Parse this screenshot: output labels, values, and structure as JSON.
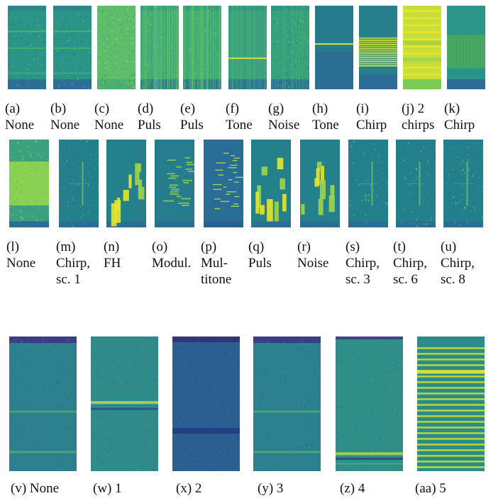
{
  "panels": [
    {
      "id": "a",
      "caption": "(a)",
      "label": "None",
      "variant": "flat-lines"
    },
    {
      "id": "b",
      "caption": "(b)",
      "label": "None",
      "variant": "flat-lines"
    },
    {
      "id": "c",
      "caption": "(c)",
      "label": "None",
      "variant": "noise"
    },
    {
      "id": "d",
      "caption": "(d)",
      "label": "Puls",
      "variant": "vstripes"
    },
    {
      "id": "e",
      "caption": "(e)",
      "label": "Puls",
      "variant": "vstripes"
    },
    {
      "id": "f",
      "caption": "(f)",
      "label": "Tone",
      "variant": "tone"
    },
    {
      "id": "g",
      "caption": "(g)",
      "label": "Noise",
      "variant": "noise-band"
    },
    {
      "id": "h",
      "caption": "(h)",
      "label": "Tone",
      "variant": "tone-dark"
    },
    {
      "id": "i",
      "caption": "(i)",
      "label": "Chirp",
      "variant": "chirp-block"
    },
    {
      "id": "j",
      "caption": "(j)  2",
      "label": "chirps",
      "variant": "chirp-bright"
    },
    {
      "id": "k",
      "caption": "(k)",
      "label": "Chirp",
      "variant": "chirp-fine"
    },
    {
      "id": "l",
      "caption": "(l)",
      "label": "None",
      "variant": "band"
    },
    {
      "id": "m",
      "caption": "(m)",
      "label": "Chirp,",
      "label2": "sc. 1",
      "variant": "sparse"
    },
    {
      "id": "n",
      "caption": "(n)",
      "label": "FH",
      "variant": "fh"
    },
    {
      "id": "o",
      "caption": "(o)",
      "label": "Modul.",
      "variant": "modul"
    },
    {
      "id": "p",
      "caption": "(p)",
      "label": "Mul-",
      "label2": "titone",
      "variant": "multitone"
    },
    {
      "id": "q",
      "caption": "(q)",
      "label": "Puls",
      "variant": "fh"
    },
    {
      "id": "r",
      "caption": "(r)",
      "label": "Noise",
      "variant": "fh"
    },
    {
      "id": "s",
      "caption": "(s)",
      "label": "Chirp,",
      "label2": "sc. 3",
      "variant": "sparse"
    },
    {
      "id": "t",
      "caption": "(t)",
      "label": "Chirp,",
      "label2": "sc. 6",
      "variant": "sparse"
    },
    {
      "id": "u",
      "caption": "(u)",
      "label": "Chirp,",
      "label2": "sc. 8",
      "variant": "sparse"
    },
    {
      "id": "v",
      "caption": "(v) None",
      "variant": "big-lines"
    },
    {
      "id": "w",
      "caption": "(w) 1",
      "variant": "big-band"
    },
    {
      "id": "x",
      "caption": "(x) 2",
      "variant": "big-dark"
    },
    {
      "id": "y",
      "caption": "(y) 3",
      "variant": "big-lines"
    },
    {
      "id": "z",
      "caption": "(z) 4",
      "variant": "big-bottom"
    },
    {
      "id": "aa",
      "caption": "(aa) 5",
      "variant": "big-comb"
    }
  ],
  "colors": {
    "dark": "#2a4a8a",
    "mid": "#1f8a8a",
    "teal": "#2a9a85",
    "green": "#5cbf6a",
    "yellow": "#e6e62a",
    "bg": "#ffffff"
  }
}
